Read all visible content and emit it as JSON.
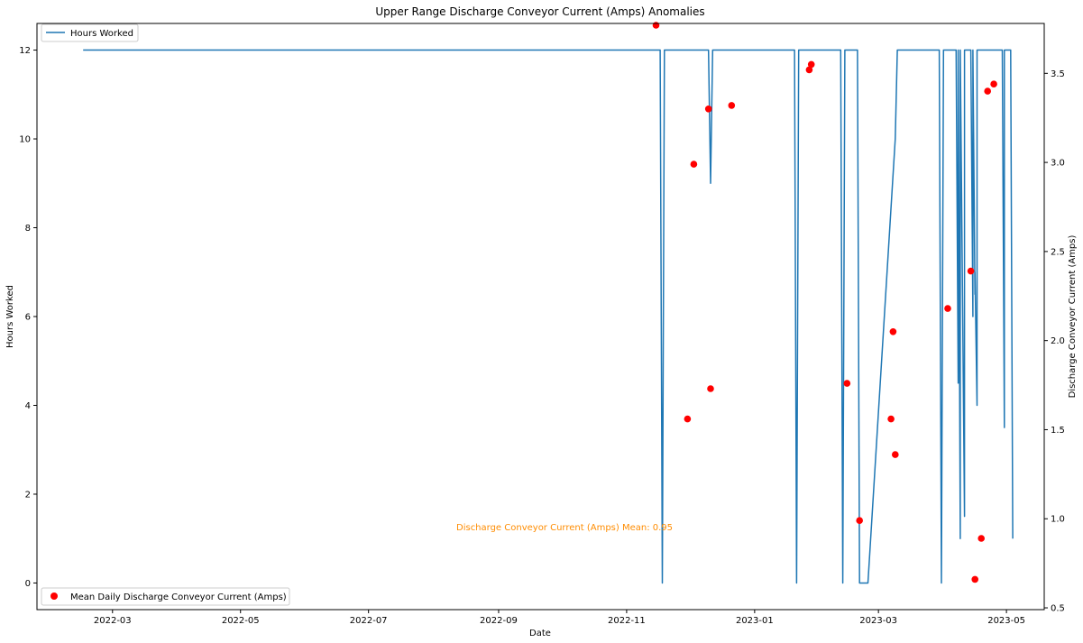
{
  "chart_data": {
    "type": "line",
    "title": "Upper Range Discharge Conveyor Current (Amps) Anomalies",
    "xlabel": "Date",
    "ylabel_left": "Hours Worked",
    "ylabel_right": "Discharge Conveyor Current (Amps)",
    "x_range": [
      "2022-01-24",
      "2023-05-19"
    ],
    "x_ticks": [
      "2022-03",
      "2022-05",
      "2022-07",
      "2022-09",
      "2022-11",
      "2023-01",
      "2023-03",
      "2023-05"
    ],
    "x_tick_dates": [
      "2022-03-01",
      "2022-05-01",
      "2022-07-01",
      "2022-09-01",
      "2022-11-01",
      "2023-01-01",
      "2023-03-01",
      "2023-05-01"
    ],
    "ylim_left": [
      -0.6,
      12.6
    ],
    "yticks_left": [
      "0",
      "2",
      "4",
      "6",
      "8",
      "10",
      "12"
    ],
    "ylim_right": [
      0.49,
      3.78
    ],
    "yticks_right": [
      "0.5",
      "1.0",
      "1.5",
      "2.0",
      "2.5",
      "3.0",
      "3.5"
    ],
    "grid": false,
    "colors": {
      "line": "#1f77b4",
      "points": "#ff0000",
      "annotation": "#ff8c00",
      "axes": "#000000"
    },
    "legend_top": {
      "placement": "top-left",
      "label": "Hours Worked"
    },
    "legend_bottom": {
      "placement": "bottom-left",
      "label": "Mean Daily Discharge Conveyor Current (Amps)"
    },
    "annotation": {
      "text": "Discharge Conveyor Current (Amps) Mean: 0.95"
    },
    "series": [
      {
        "name": "Hours Worked",
        "axis": "left",
        "style": "line",
        "points": [
          [
            "2022-02-15",
            12
          ],
          [
            "2022-11-17",
            12
          ],
          [
            "2022-11-18",
            0
          ],
          [
            "2022-11-19",
            12
          ],
          [
            "2022-12-10",
            12
          ],
          [
            "2022-12-11",
            9
          ],
          [
            "2022-12-12",
            12
          ],
          [
            "2023-01-20",
            12
          ],
          [
            "2023-01-21",
            0
          ],
          [
            "2023-01-22",
            12
          ],
          [
            "2023-02-11",
            12
          ],
          [
            "2023-02-12",
            0
          ],
          [
            "2023-02-13",
            12
          ],
          [
            "2023-02-19",
            12
          ],
          [
            "2023-02-20",
            0
          ],
          [
            "2023-02-24",
            0
          ],
          [
            "2023-03-09",
            10
          ],
          [
            "2023-03-10",
            12
          ],
          [
            "2023-03-30",
            12
          ],
          [
            "2023-03-31",
            0
          ],
          [
            "2023-04-01",
            12
          ],
          [
            "2023-04-07",
            12
          ],
          [
            "2023-04-08",
            4.5
          ],
          [
            "2023-04-08",
            12
          ],
          [
            "2023-04-09",
            1
          ],
          [
            "2023-04-09",
            12
          ],
          [
            "2023-04-11",
            1.5
          ],
          [
            "2023-04-11",
            12
          ],
          [
            "2023-04-14",
            12
          ],
          [
            "2023-04-15",
            6
          ],
          [
            "2023-04-15",
            12
          ],
          [
            "2023-04-16",
            6.5
          ],
          [
            "2023-04-16",
            7
          ],
          [
            "2023-04-17",
            4
          ],
          [
            "2023-04-17",
            12
          ],
          [
            "2023-04-29",
            12
          ],
          [
            "2023-04-30",
            3.5
          ],
          [
            "2023-04-30",
            12
          ],
          [
            "2023-05-03",
            12
          ],
          [
            "2023-05-04",
            1
          ]
        ]
      },
      {
        "name": "Mean Daily Discharge Conveyor Current (Amps)",
        "axis": "right",
        "style": "scatter",
        "points": [
          [
            "2022-11-15",
            3.77
          ],
          [
            "2022-11-30",
            1.56
          ],
          [
            "2022-12-03",
            2.99
          ],
          [
            "2022-12-10",
            3.3
          ],
          [
            "2022-12-11",
            1.73
          ],
          [
            "2022-12-21",
            3.32
          ],
          [
            "2023-01-27",
            3.52
          ],
          [
            "2023-01-28",
            3.55
          ],
          [
            "2023-02-14",
            1.76
          ],
          [
            "2023-02-20",
            0.99
          ],
          [
            "2023-03-07",
            1.56
          ],
          [
            "2023-03-08",
            2.05
          ],
          [
            "2023-03-09",
            1.36
          ],
          [
            "2023-04-03",
            2.18
          ],
          [
            "2023-04-14",
            2.39
          ],
          [
            "2023-04-16",
            0.66
          ],
          [
            "2023-04-19",
            0.89
          ],
          [
            "2023-04-22",
            3.4
          ],
          [
            "2023-04-25",
            3.44
          ]
        ]
      }
    ]
  }
}
